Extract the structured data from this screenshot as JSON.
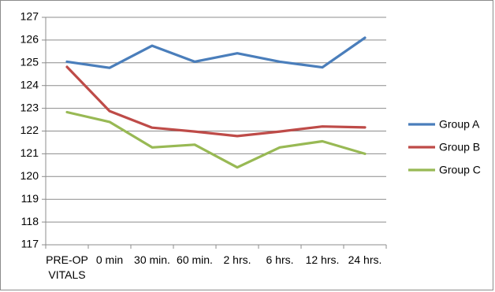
{
  "chart_data": {
    "type": "line",
    "categories": [
      "PRE-OP\nVITALS",
      "0 min",
      "30 min.",
      "60 min.",
      "2 hrs.",
      "6 hrs.",
      "12 hrs.",
      "24 hrs."
    ],
    "series": [
      {
        "name": "Group A",
        "color": "#4a7ebb",
        "values": [
          125.05,
          124.78,
          125.75,
          125.05,
          125.42,
          125.05,
          124.8,
          126.1
        ]
      },
      {
        "name": "Group B",
        "color": "#be4b48",
        "values": [
          124.82,
          122.88,
          122.15,
          121.98,
          121.78,
          121.98,
          122.2,
          122.16
        ]
      },
      {
        "name": "Group C",
        "color": "#98b954",
        "values": [
          122.83,
          122.4,
          121.28,
          121.4,
          120.4,
          121.28,
          121.55,
          121.0
        ]
      }
    ],
    "ylim": [
      117,
      127
    ],
    "yticks": [
      117,
      118,
      119,
      120,
      121,
      122,
      123,
      124,
      125,
      126,
      127
    ],
    "grid": true,
    "legend_position": "right"
  }
}
